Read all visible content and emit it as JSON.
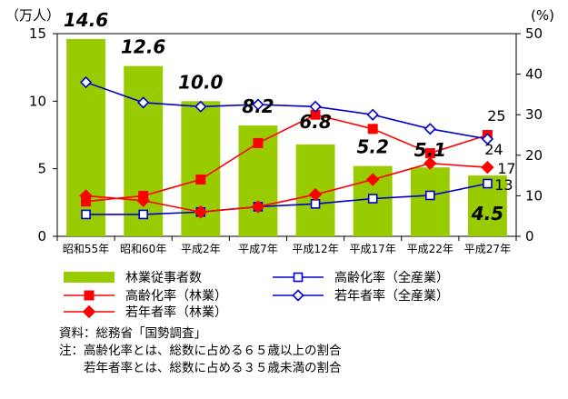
{
  "chart_data": {
    "type": "bar+line",
    "categories": [
      "昭和55年",
      "昭和60年",
      "平成2年",
      "平成7年",
      "平成12年",
      "平成17年",
      "平成22年",
      "平成27年"
    ],
    "left_axis": {
      "unit": "（万人）",
      "ylim": [
        0,
        15
      ],
      "ticks": [
        "0",
        "5",
        "10",
        "15"
      ]
    },
    "right_axis": {
      "unit": "(%)",
      "ylim": [
        0,
        50
      ],
      "ticks": [
        "0",
        "10",
        "20",
        "30",
        "40",
        "50"
      ]
    },
    "bars": {
      "name": "林業従事者数",
      "color": "#99cc00",
      "values": [
        14.6,
        12.6,
        10.0,
        8.2,
        6.8,
        5.2,
        5.1,
        4.5
      ],
      "labels": [
        "14.6",
        "12.6",
        "10.0",
        "8.2",
        "6.8",
        "5.2",
        "5.1",
        "4.5"
      ]
    },
    "series": [
      {
        "name": "高齢化率（全産業）",
        "axis": "right",
        "color": "#0000cc",
        "marker": "open-square",
        "values": [
          5.4,
          5.4,
          6.0,
          7.3,
          8.0,
          9.3,
          10.1,
          13.0
        ]
      },
      {
        "name": "高齢化率（林業）",
        "axis": "right",
        "color": "#ff0000",
        "marker": "filled-square",
        "values": [
          8.6,
          10.0,
          14.0,
          23.0,
          30.0,
          26.5,
          20.5,
          25.0
        ]
      },
      {
        "name": "若年者率（全産業）",
        "axis": "right",
        "color": "#0000cc",
        "marker": "open-diamond",
        "values": [
          38.0,
          33.0,
          32.0,
          32.5,
          32.0,
          30.0,
          26.5,
          24.0
        ]
      },
      {
        "name": "若年者率（林業）",
        "axis": "right",
        "color": "#ff0000",
        "marker": "filled-diamond",
        "values": [
          10.0,
          8.8,
          6.0,
          7.3,
          10.3,
          14.0,
          18.0,
          17.0
        ]
      }
    ],
    "end_labels": {
      "ageing_forestry": "25",
      "youth_all": "24",
      "youth_forestry": "17",
      "ageing_all": "13"
    }
  },
  "notes": [
    "資料：総務省「国勢調査」",
    "注：高齢化率とは、総数に占める６５歳以上の割合",
    "　　若年者率とは、総数に占める３５歳未満の割合"
  ]
}
